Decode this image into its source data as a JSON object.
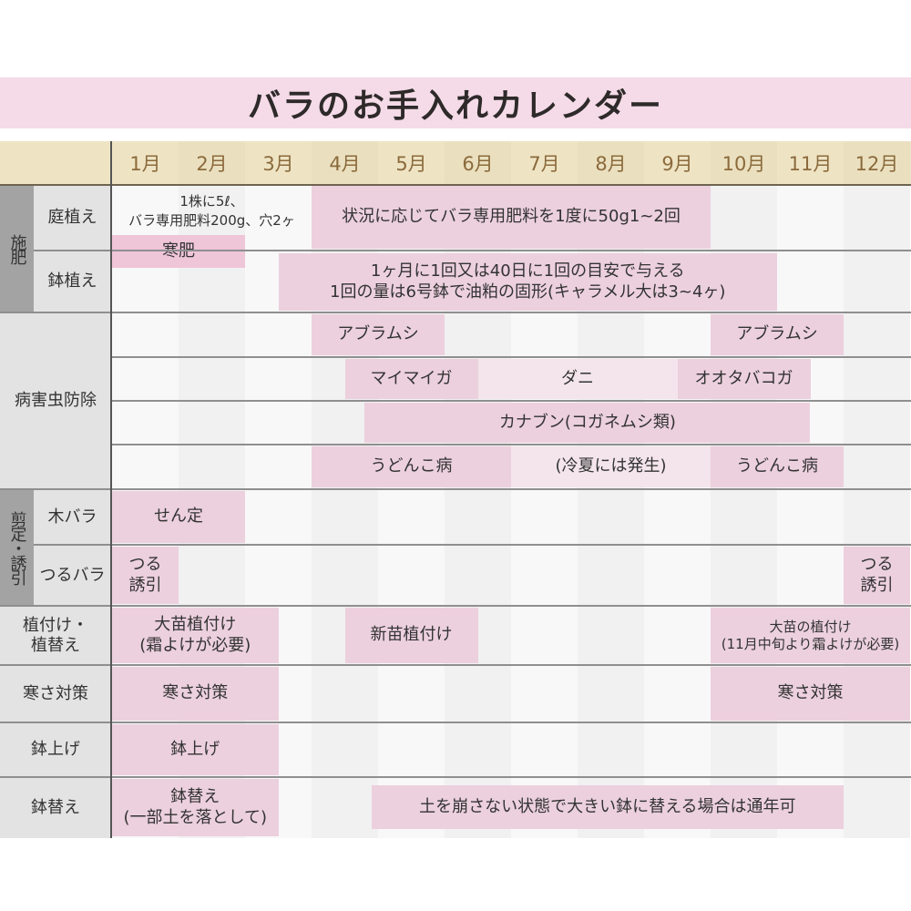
{
  "title": "バラのお手入れカレンダー",
  "months": [
    "1月",
    "2月",
    "3月",
    "4月",
    "5月",
    "6月",
    "7月",
    "8月",
    "9月",
    "10月",
    "11月",
    "12月"
  ],
  "colors": {
    "bar": "#ecd0de",
    "bar_light": "#f3e5eb",
    "bar_strong": "#efc5d8",
    "header": "#eee4c4",
    "title_band": "#f4dbe7"
  },
  "groups": [
    {
      "label": "施肥",
      "subs": [
        "庭植え",
        "鉢植え"
      ]
    },
    {
      "label": "病害虫防除"
    },
    {
      "label": "剪定・誘引",
      "subs": [
        "木バラ",
        "つるバラ"
      ]
    },
    {
      "label": "植付け・\n植替え"
    },
    {
      "label": "寒さ対策"
    },
    {
      "label": "鉢上げ"
    },
    {
      "label": "鉢替え"
    }
  ],
  "bars": [
    {
      "row": "niwa",
      "start": 4,
      "end": 10,
      "text": "状況に応じてバラ専用肥料を1度に50g1~2回",
      "tone": "bar"
    },
    {
      "row": "niwa_note",
      "start": 1,
      "end": 4,
      "text": "1株に5ℓ、\nバラ専用肥料200g、穴2ヶ",
      "tone": "none"
    },
    {
      "row": "kangoe",
      "start": 1,
      "end": 3,
      "text": "寒肥",
      "tone": "bar_strong"
    },
    {
      "row": "hachi",
      "start": 3.5,
      "end": 11,
      "text": "1ヶ月に1回又は40日に1回の目安で与える\n1回の量は6号鉢で油粕の固形(キャラメル大は3~4ヶ)",
      "tone": "bar"
    },
    {
      "row": "pest1",
      "start": 4,
      "end": 6,
      "text": "アブラムシ",
      "tone": "bar"
    },
    {
      "row": "pest1",
      "start": 10,
      "end": 12,
      "text": "アブラムシ",
      "tone": "bar"
    },
    {
      "row": "pest2",
      "start": 4.5,
      "end": 6.5,
      "text": "マイマイガ",
      "tone": "bar"
    },
    {
      "row": "pest2",
      "start": 6.5,
      "end": 9.5,
      "text": "ダニ",
      "tone": "bar_light"
    },
    {
      "row": "pest2",
      "start": 9.5,
      "end": 11.5,
      "text": "オオタバコガ",
      "tone": "bar"
    },
    {
      "row": "pest3",
      "start": 4.8,
      "end": 11.5,
      "text": "カナブン(コガネムシ類)",
      "tone": "bar"
    },
    {
      "row": "pest4",
      "start": 4,
      "end": 7,
      "text": "うどんこ病",
      "tone": "bar"
    },
    {
      "row": "pest4",
      "start": 7,
      "end": 10,
      "text": "(冷夏には発生)",
      "tone": "bar_light"
    },
    {
      "row": "pest4",
      "start": 10,
      "end": 12,
      "text": "うどんこ病",
      "tone": "bar"
    },
    {
      "row": "kibara",
      "start": 1,
      "end": 3,
      "text": "せん定",
      "tone": "bar"
    },
    {
      "row": "tsuru",
      "start": 1,
      "end": 2,
      "text": "つる\n誘引",
      "tone": "bar"
    },
    {
      "row": "tsuru",
      "start": 12,
      "end": 13,
      "text": "つる\n誘引",
      "tone": "bar"
    },
    {
      "row": "uetsuke",
      "start": 1,
      "end": 3.5,
      "text": "大苗植付け\n(霜よけが必要)",
      "tone": "bar"
    },
    {
      "row": "uetsuke",
      "start": 4.5,
      "end": 6.5,
      "text": "新苗植付け",
      "tone": "bar"
    },
    {
      "row": "uetsuke",
      "start": 10,
      "end": 13,
      "text": "大苗の植付け\n(11月中旬より霜よけが必要)",
      "tone": "bar",
      "small": true
    },
    {
      "row": "samusa",
      "start": 1,
      "end": 3.5,
      "text": "寒さ対策",
      "tone": "bar"
    },
    {
      "row": "samusa",
      "start": 10,
      "end": 13,
      "text": "寒さ対策",
      "tone": "bar"
    },
    {
      "row": "hachiage",
      "start": 1,
      "end": 3.5,
      "text": "鉢上げ",
      "tone": "bar"
    },
    {
      "row": "hachigae",
      "start": 1,
      "end": 3.5,
      "text": "鉢替え\n(一部土を落として)",
      "tone": "bar"
    },
    {
      "row": "hachigae_inset",
      "start": 4.9,
      "end": 12,
      "text": "土を崩さない状態で大きい鉢に替える場合は通年可",
      "tone": "bar"
    }
  ]
}
